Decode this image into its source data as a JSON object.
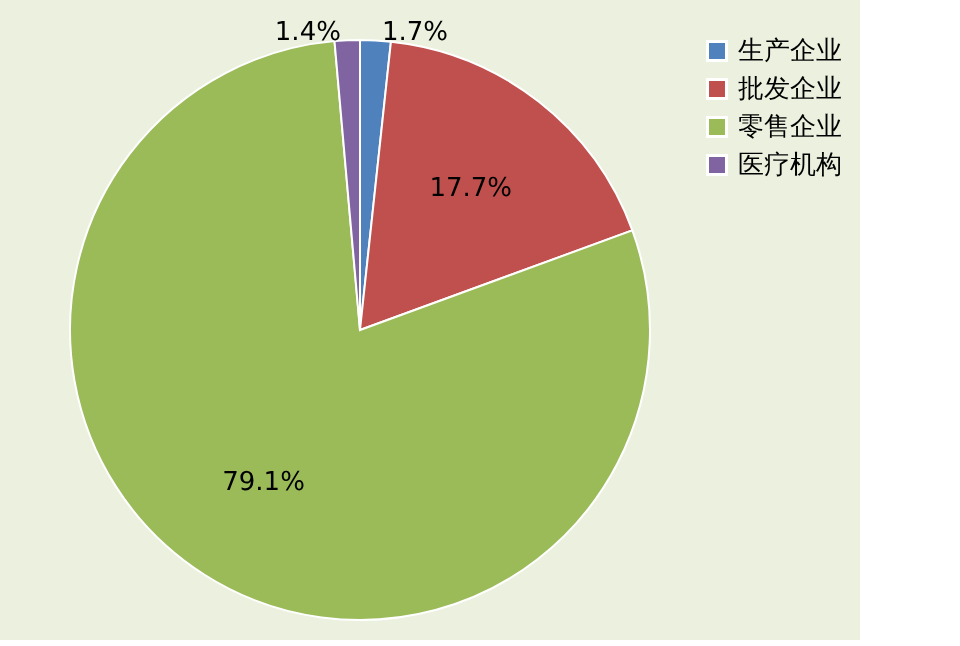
{
  "chart_data": {
    "type": "pie",
    "categories": [
      "生产企业",
      "批发企业",
      "零售企业",
      "医疗机构"
    ],
    "values": [
      1.7,
      17.7,
      79.1,
      1.4
    ],
    "colors": [
      "#4f81bd",
      "#c0504d",
      "#9bbb59",
      "#8064a2"
    ],
    "value_labels": [
      "1.7%",
      "17.7%",
      "79.1%",
      "1.4%"
    ],
    "legend": "right"
  }
}
